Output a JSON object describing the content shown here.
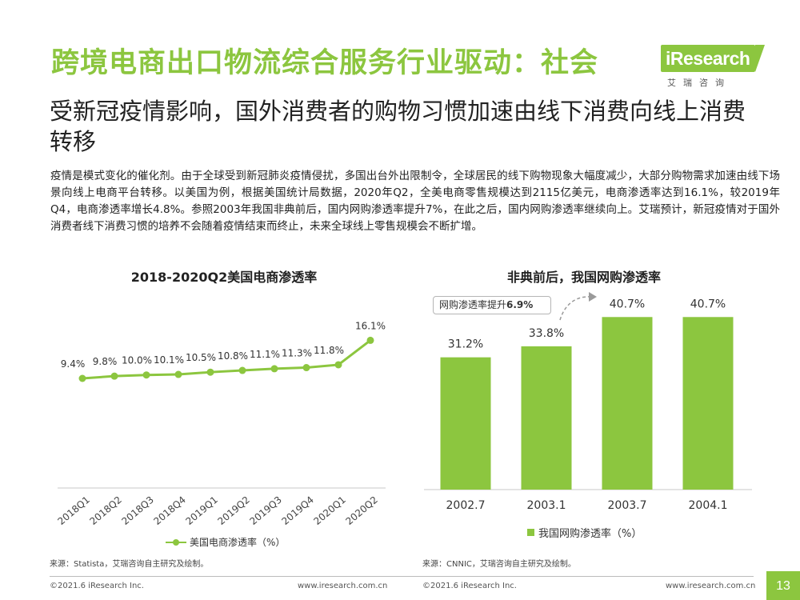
{
  "title": "跨境电商出口物流综合服务行业驱动：社会",
  "logo": {
    "word": "iResearch",
    "sub": "艾瑞咨询"
  },
  "subtitle": "受新冠疫情影响，国外消费者的购物习惯加速由线下消费向线上消费转移",
  "body": "疫情是模式变化的催化剂。由于全球受到新冠肺炎疫情侵扰，多国出台外出限制令，全球居民的线下购物现象大幅度减少，大部分购物需求加速由线下场景向线上电商平台转移。以美国为例，根据美国统计局数据，2020年Q2，全美电商零售规模达到2115亿美元，电商渗透率达到16.1%，较2019年Q4，电商渗透率增长4.8%。参照2003年我国非典前后，国内网购渗透率提升7%，在此之后，国内网购渗透率继续向上。艾瑞预计，新冠疫情对于国外消费者线下消费习惯的培养不会随着疫情结束而终止，未来全球线上零售规模会不断扩增。",
  "colors": {
    "accent": "#8cc63f",
    "text": "#222222"
  },
  "callout": {
    "text": "网购渗透率提升",
    "value": "6.9%"
  },
  "sources": {
    "left": "来源：Statista，艾瑞咨询自主研究及绘制。",
    "right": "来源：CNNIC，艾瑞咨询自主研究及绘制。"
  },
  "footer": {
    "left_copyright": "©2021.6 iResearch Inc.",
    "left_url": "www.iresearch.com.cn",
    "right_copyright": "©2021.6 iResearch Inc.",
    "right_url": "www.iresearch.com.cn",
    "page": "13"
  },
  "chart_data": [
    {
      "type": "line",
      "title": "2018-2020Q2美国电商渗透率",
      "categories": [
        "2018Q1",
        "2018Q2",
        "2018Q3",
        "2018Q4",
        "2019Q1",
        "2019Q2",
        "2019Q3",
        "2019Q4",
        "2020Q1",
        "2020Q2"
      ],
      "series": [
        {
          "name": "美国电商渗透率（%）",
          "values": [
            9.4,
            9.8,
            10.0,
            10.1,
            10.5,
            10.8,
            11.1,
            11.3,
            11.8,
            16.1
          ],
          "labels": [
            "9.4%",
            "9.8%",
            "10.0%",
            "10.1%",
            "10.5%",
            "10.8%",
            "11.1%",
            "11.3%",
            "11.8%",
            "16.1%"
          ]
        }
      ],
      "unit": "%",
      "legend": "bottom",
      "grid": false
    },
    {
      "type": "bar",
      "title": "非典前后，我国网购渗透率",
      "categories": [
        "2002.7",
        "2003.1",
        "2003.7",
        "2004.1"
      ],
      "series": [
        {
          "name": "我国网购渗透率（%）",
          "values": [
            31.2,
            33.8,
            40.7,
            40.7
          ],
          "labels": [
            "31.2%",
            "33.8%",
            "40.7%",
            "40.7%"
          ]
        }
      ],
      "unit": "%",
      "legend": "bottom",
      "grid": false
    }
  ]
}
